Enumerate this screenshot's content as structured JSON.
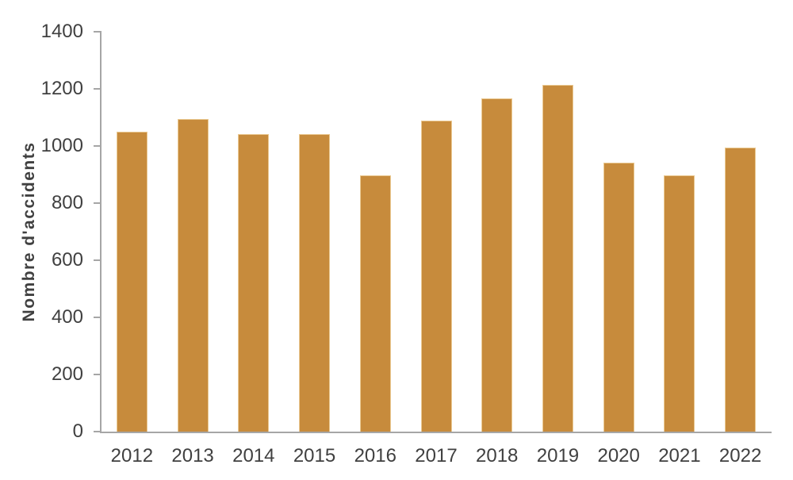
{
  "chart_data": {
    "type": "bar",
    "title": "",
    "xlabel": "",
    "ylabel": "Nombre d'accidents",
    "categories": [
      "2012",
      "2013",
      "2014",
      "2015",
      "2016",
      "2017",
      "2018",
      "2019",
      "2020",
      "2021",
      "2022"
    ],
    "values": [
      1049,
      1095,
      1043,
      1043,
      897,
      1089,
      1168,
      1215,
      941,
      898,
      995
    ],
    "ylim": [
      0,
      1400
    ],
    "yticks": [
      0,
      200,
      400,
      600,
      800,
      1000,
      1200,
      1400
    ],
    "grid": false,
    "legend": false,
    "colors": {
      "bar_fill": "#C78B3C",
      "bar_border": "#EAC992",
      "axis_line": "#A6A6A6",
      "text": "#404040",
      "background": "#FFFFFF"
    }
  }
}
